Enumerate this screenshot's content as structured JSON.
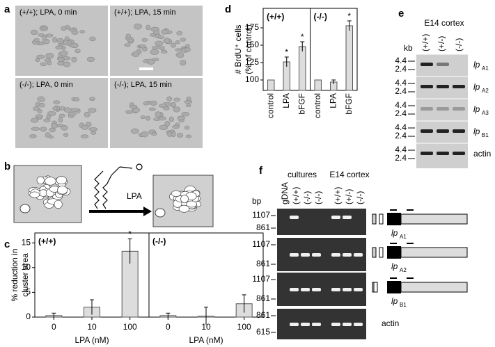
{
  "panel_labels": [
    "a",
    "b",
    "c",
    "d",
    "e",
    "f"
  ],
  "panel_a": {
    "captions": [
      "(+/+); LPA, 0 min",
      "(+/+); LPA, 15 min",
      "(-/-); LPA, 0 min",
      "(-/-); LPA, 15 min"
    ]
  },
  "panel_b": {
    "label": "LPA"
  },
  "chart_data": [
    {
      "type": "bar",
      "ylabel": [
        "% reduction in",
        "cluster area"
      ],
      "xlabel": "LPA (nM)",
      "ylim": [
        0,
        17
      ],
      "yticks": [
        0,
        5,
        10,
        15
      ],
      "groups": [
        {
          "name": "(+/+)",
          "categories": [
            "0",
            "10",
            "100"
          ],
          "values": [
            0.3,
            2,
            13.3
          ],
          "errors": [
            0.5,
            1.5,
            2.5
          ],
          "stars": [
            null,
            null,
            "*"
          ]
        },
        {
          "name": "(-/-)",
          "categories": [
            "0",
            "10",
            "100"
          ],
          "values": [
            0.3,
            0.2,
            2.7
          ],
          "errors": [
            0.5,
            1.8,
            1.8
          ],
          "stars": [
            null,
            null,
            null
          ]
        }
      ]
    },
    {
      "type": "bar",
      "ylabel": [
        "# BrdU⁺ cells",
        "(% of control)"
      ],
      "ylim": [
        85,
        203
      ],
      "yticks": [
        100,
        125,
        150,
        175
      ],
      "groups": [
        {
          "name": "(+/+)",
          "categories": [
            "control",
            "LPA",
            "bFGF"
          ],
          "values": [
            100,
            126,
            148
          ],
          "errors": [
            0,
            7,
            7
          ],
          "stars": [
            null,
            "*",
            "*"
          ]
        },
        {
          "name": "(-/-)",
          "categories": [
            "control",
            "LPA",
            "bFGF"
          ],
          "values": [
            100,
            97,
            178
          ],
          "errors": [
            0,
            3,
            7
          ],
          "stars": [
            null,
            null,
            "*"
          ]
        }
      ]
    }
  ],
  "panel_e": {
    "title": "E14 cortex",
    "lanes": [
      "(+/+)",
      "(+/-)",
      "(-/-)"
    ],
    "unit": "kb",
    "rows": [
      {
        "gene": "lp",
        "sub": "A1",
        "markers": [
          "4.4",
          "2.4"
        ]
      },
      {
        "gene": "lp",
        "sub": "A2",
        "markers": [
          "4.4",
          "2.4"
        ]
      },
      {
        "gene": "lp",
        "sub": "A3",
        "markers": [
          "4.4",
          "2.4"
        ]
      },
      {
        "gene": "lp",
        "sub": "B1",
        "markers": [
          "4.4",
          "2.4"
        ]
      },
      {
        "gene": "actin",
        "markers": [
          "4.4",
          "2.4"
        ]
      }
    ]
  },
  "panel_f": {
    "group_labels": [
      "cultures",
      "E14 cortex"
    ],
    "lanes": [
      "gDNA",
      "(+/+)",
      "(-/-)",
      "(-/-)",
      "(+/+)",
      "(+/-)",
      "(-/-)"
    ],
    "unit": "bp",
    "rows": [
      {
        "gene": "lp",
        "sub": "A1",
        "markers": [
          "1107",
          "861"
        ]
      },
      {
        "gene": "lp",
        "sub": "A2",
        "markers": [
          "1107",
          "861"
        ]
      },
      {
        "gene": "lp",
        "sub": "B1",
        "markers": [
          "1107",
          "861"
        ]
      },
      {
        "gene": "actin",
        "markers": [
          "861",
          "615"
        ]
      }
    ]
  }
}
